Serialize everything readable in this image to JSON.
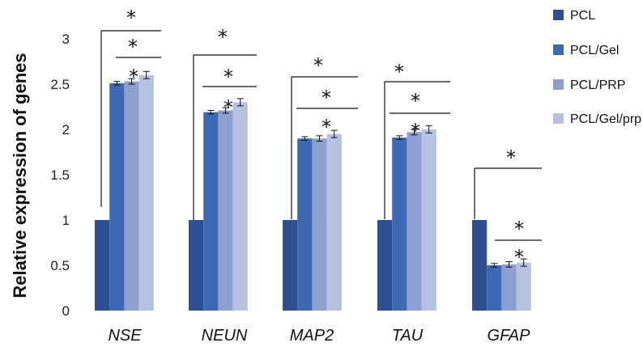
{
  "chart_data": {
    "type": "bar",
    "title": "",
    "xlabel": "",
    "ylabel": "Relative expression of genes",
    "ylim": [
      0,
      3
    ],
    "yticks": [
      0,
      0.5,
      1,
      1.5,
      2,
      2.5,
      3
    ],
    "ytick_labels": [
      "0",
      "0.5",
      "1",
      "1.5",
      "2",
      "2.5",
      "3"
    ],
    "categories": [
      "NSE",
      "NEUN",
      "MAP2",
      "TAU",
      "GFAP"
    ],
    "series": [
      {
        "name": "PCL",
        "color": "#2f4f93",
        "values": [
          1,
          1,
          1,
          1,
          1
        ],
        "errors": [
          0,
          0,
          0,
          0,
          0
        ]
      },
      {
        "name": "PCL/Gel",
        "color": "#3d68b3",
        "values": [
          2.51,
          2.19,
          1.9,
          1.91,
          0.5
        ],
        "errors": [
          0.02,
          0.02,
          0.02,
          0.02,
          0.02
        ]
      },
      {
        "name": "PCL/PRP",
        "color": "#8c9fcf",
        "values": [
          2.53,
          2.21,
          1.9,
          1.97,
          0.51
        ],
        "errors": [
          0.03,
          0.03,
          0.03,
          0.03,
          0.03
        ]
      },
      {
        "name": "PCL/Gel/prp",
        "color": "#b6c2e2",
        "values": [
          2.6,
          2.3,
          1.95,
          2.0,
          0.53
        ],
        "errors": [
          0.04,
          0.04,
          0.04,
          0.04,
          0.04
        ]
      }
    ],
    "grid": false,
    "legend_position": "right",
    "significance_symbol": "*"
  }
}
